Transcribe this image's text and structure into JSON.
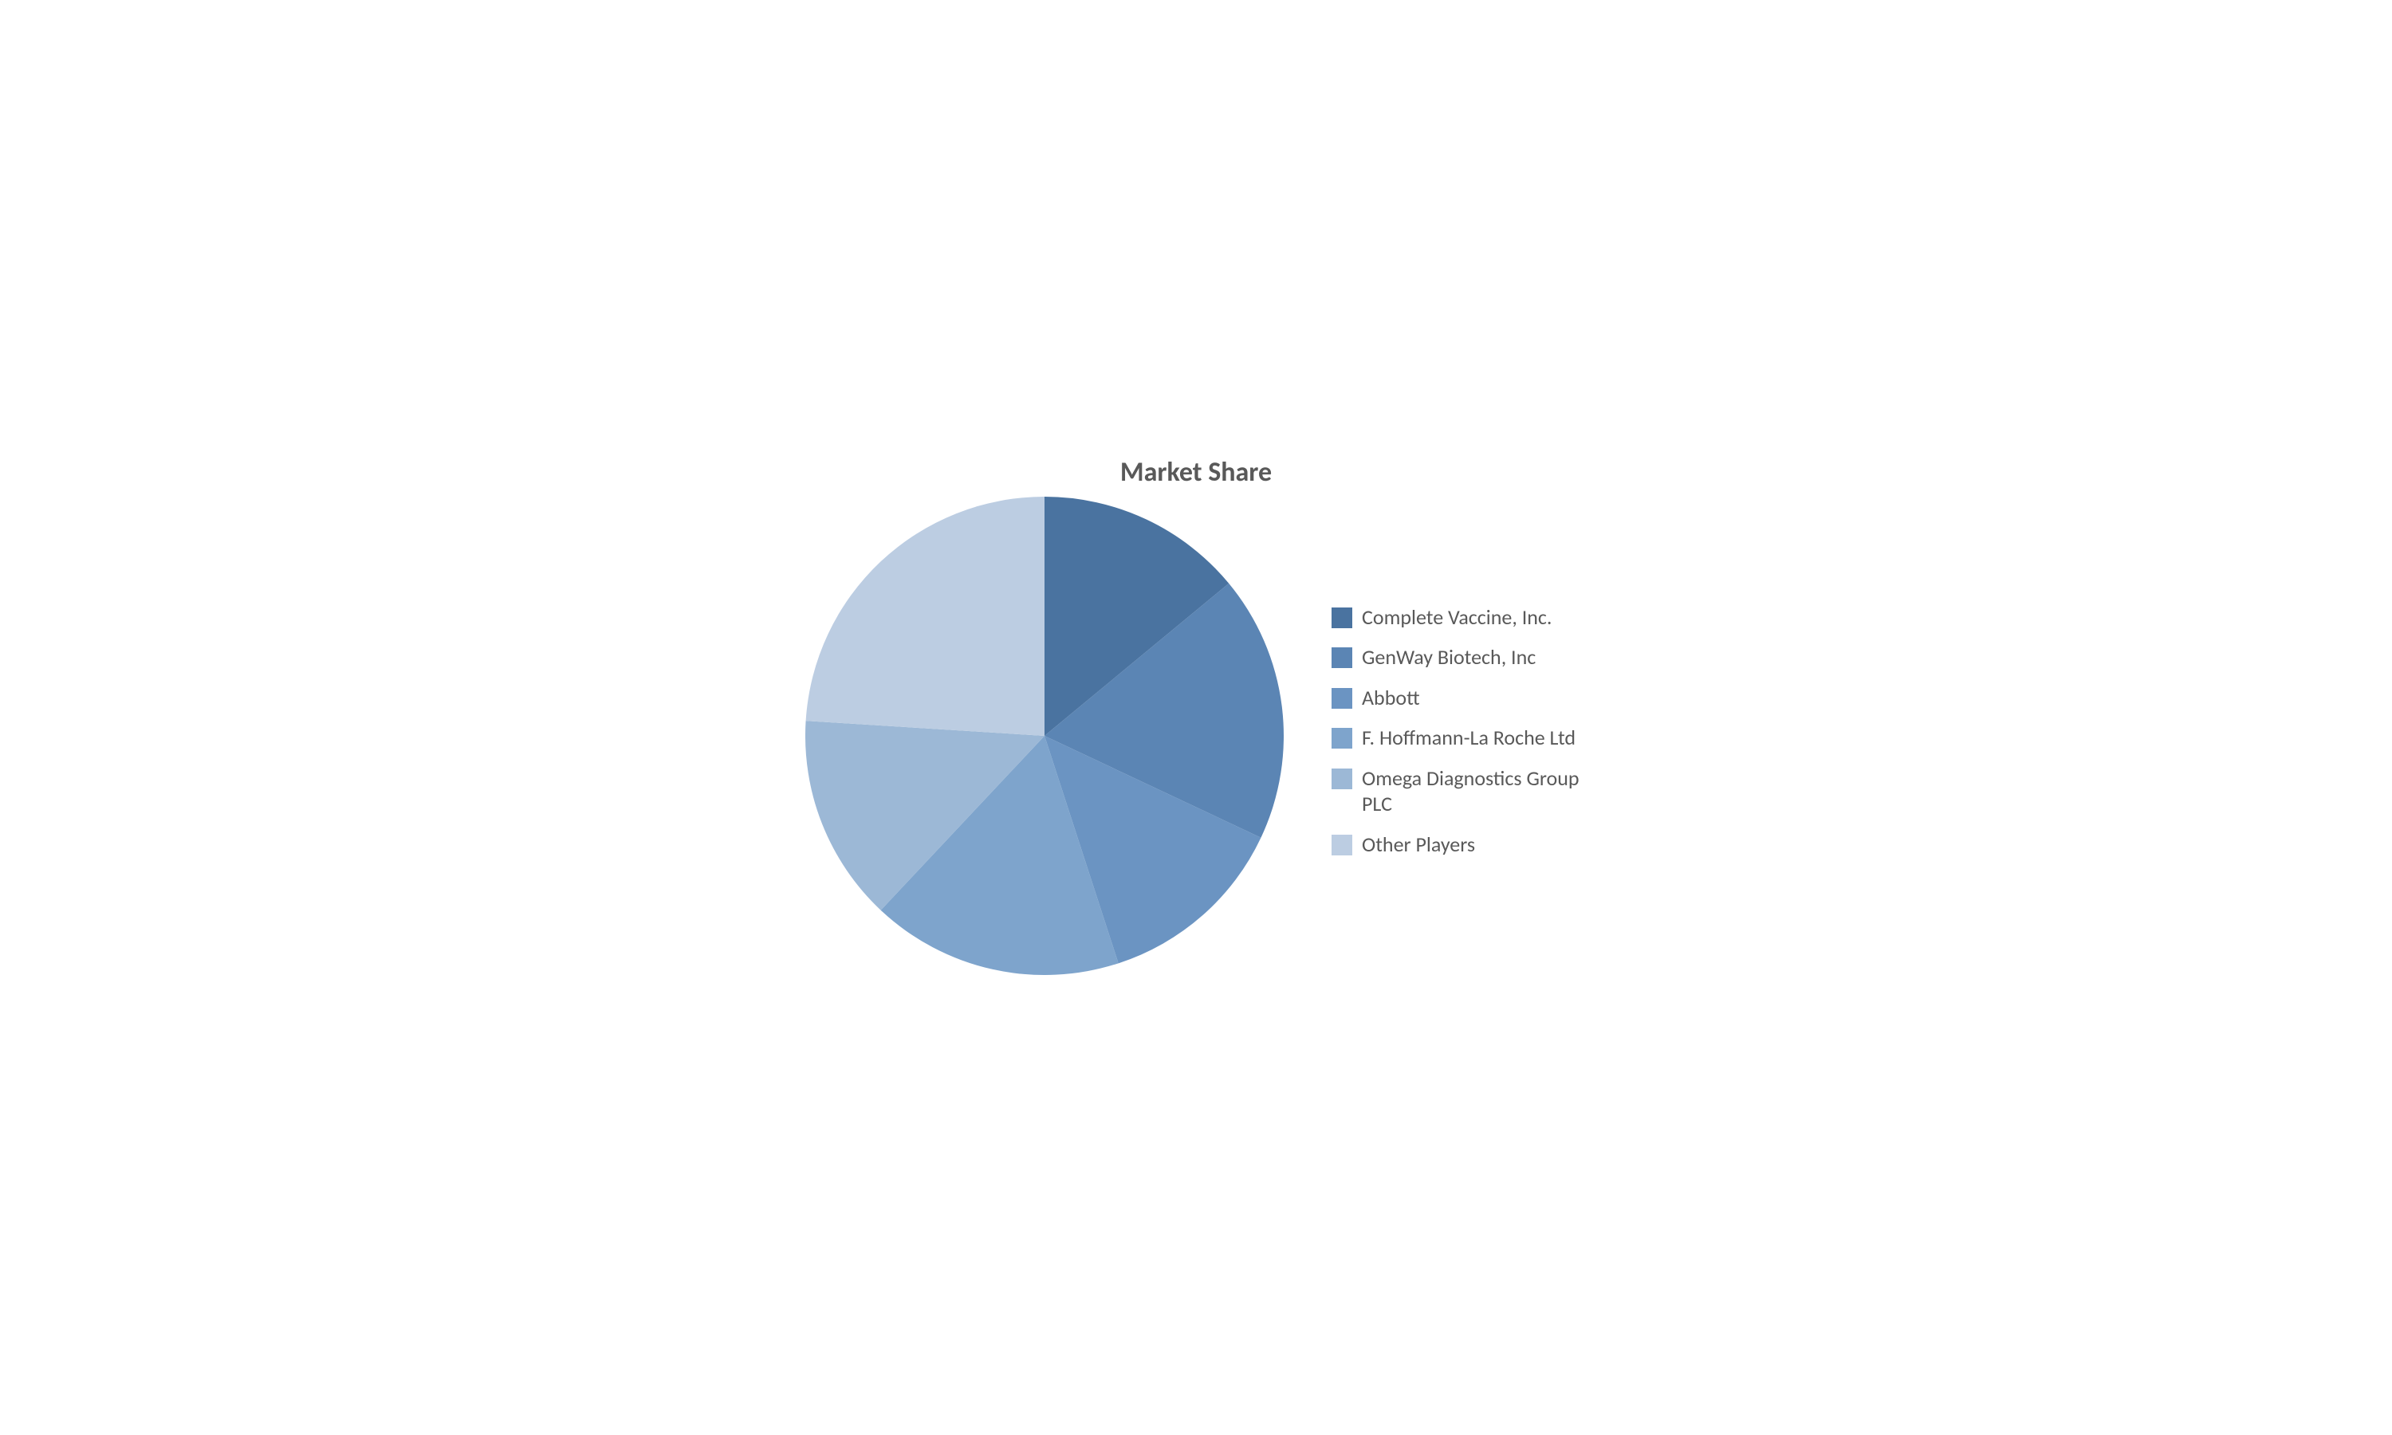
{
  "chart": {
    "type": "pie",
    "title": "Market Share",
    "title_fontsize": 34,
    "title_color": "#595959",
    "label_fontsize": 26,
    "label_color": "#595959",
    "background_color": "#ffffff",
    "pie_radius": 300,
    "swatch_size": 26,
    "legend_max_width": 320,
    "font_family": "Calibri, Arial, sans-serif",
    "slices": [
      {
        "label": "Complete Vaccine, Inc.",
        "value": 14,
        "color": "#4a73a0"
      },
      {
        "label": "GenWay Biotech, Inc",
        "value": 18,
        "color": "#5b85b4"
      },
      {
        "label": "Abbott",
        "value": 13,
        "color": "#6b94c2"
      },
      {
        "label": "F. Hoffmann-La Roche Ltd",
        "value": 17,
        "color": "#7ea4cc"
      },
      {
        "label": "Omega Diagnostics Group PLC",
        "value": 14,
        "color": "#9cb8d6"
      },
      {
        "label": "Other Players",
        "value": 24,
        "color": "#bccde2"
      }
    ]
  }
}
